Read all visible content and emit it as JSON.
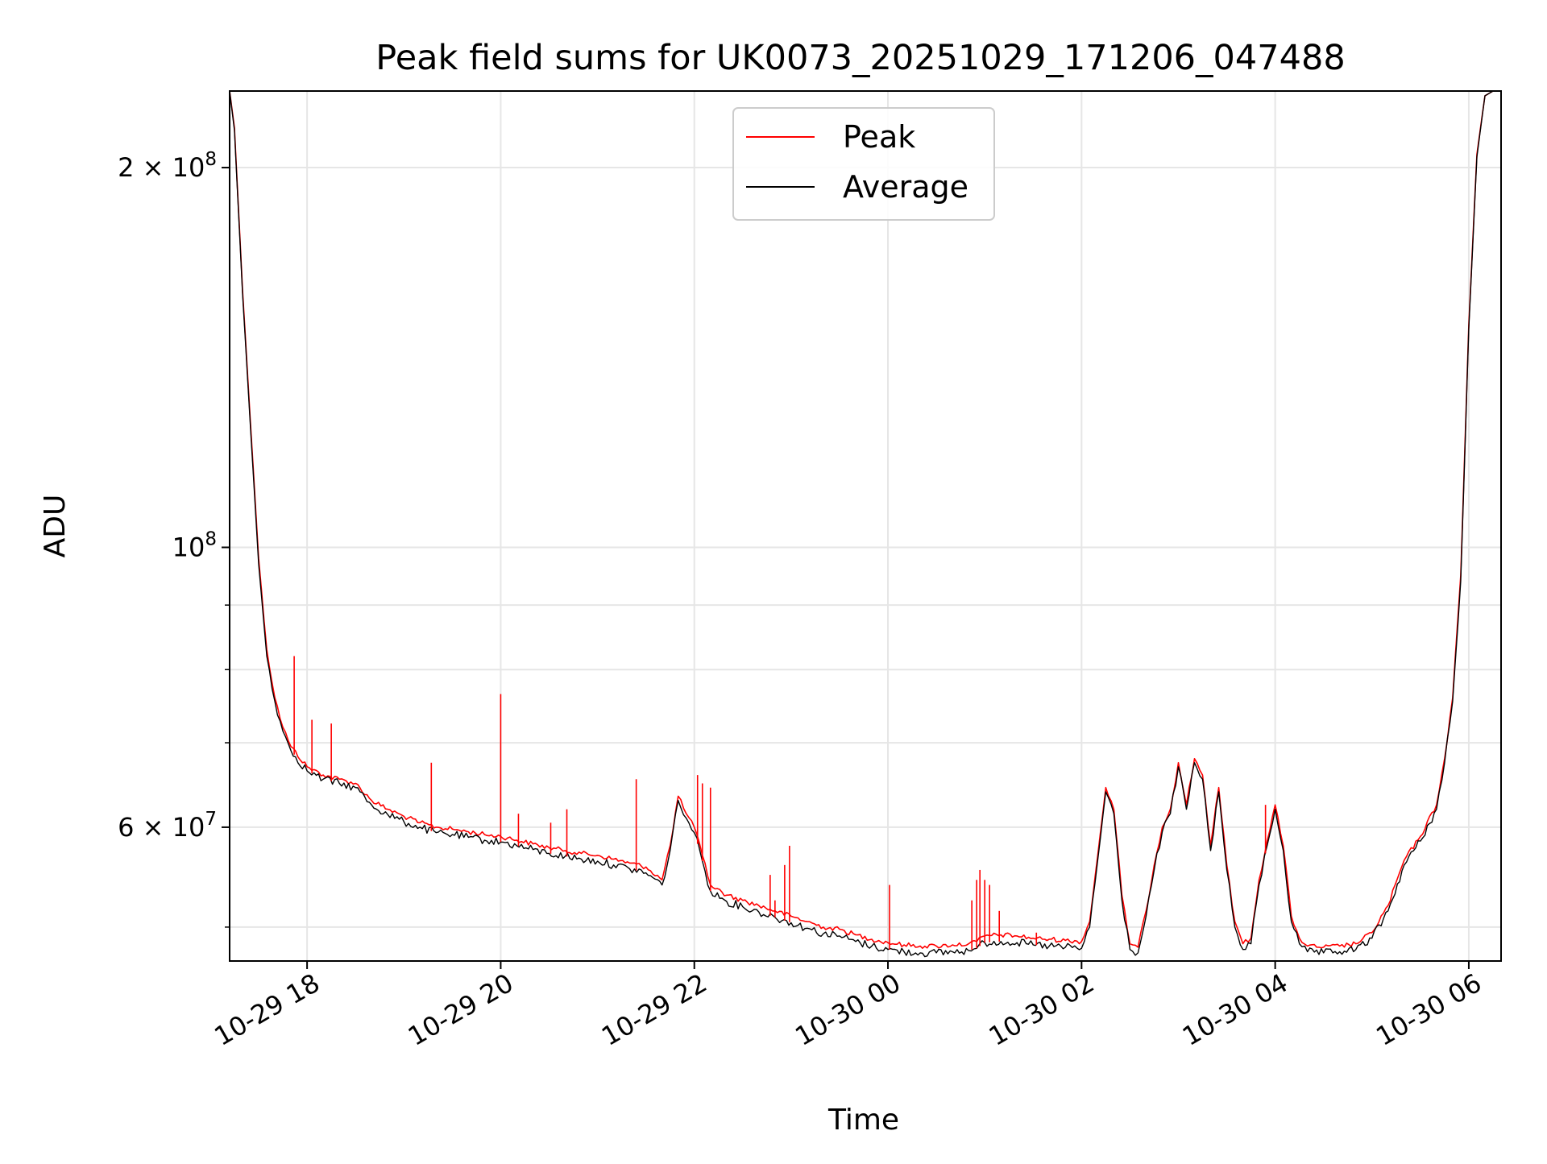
{
  "chart_data": {
    "type": "line",
    "title": "Peak field sums for UK0073_20251029_171206_047488",
    "xlabel": "Time",
    "ylabel": "ADU",
    "y_scale": "log",
    "ylim": [
      47000000,
      230000000
    ],
    "xlim": [
      "2025-10-29 17:12",
      "2025-10-30 06:20"
    ],
    "grid": true,
    "legend_position": "upper-center",
    "x_ticks": [
      {
        "value": "2025-10-29 18:00",
        "label": "10-29 18"
      },
      {
        "value": "2025-10-29 20:00",
        "label": "10-29 20"
      },
      {
        "value": "2025-10-29 22:00",
        "label": "10-29 22"
      },
      {
        "value": "2025-10-30 00:00",
        "label": "10-30 00"
      },
      {
        "value": "2025-10-30 02:00",
        "label": "10-30 02"
      },
      {
        "value": "2025-10-30 04:00",
        "label": "10-30 04"
      },
      {
        "value": "2025-10-30 06:00",
        "label": "10-30 06"
      }
    ],
    "y_ticks_major": [
      {
        "value": 200000000,
        "base": "2",
        "sep": " × ",
        "mant": "10",
        "exp": "8"
      },
      {
        "value": 100000000,
        "base": "",
        "sep": "",
        "mant": "10",
        "exp": "8"
      },
      {
        "value": 60000000,
        "base": "6",
        "sep": " × ",
        "mant": "10",
        "exp": "7"
      }
    ],
    "y_ticks_minor": [
      50000000,
      70000000,
      80000000,
      90000000
    ],
    "x": [
      "2025-10-29 17:12",
      "2025-10-29 17:15",
      "2025-10-29 17:20",
      "2025-10-29 17:25",
      "2025-10-29 17:30",
      "2025-10-29 17:35",
      "2025-10-29 17:40",
      "2025-10-29 17:45",
      "2025-10-29 17:50",
      "2025-10-29 18:00",
      "2025-10-29 18:10",
      "2025-10-29 18:20",
      "2025-10-29 18:30",
      "2025-10-29 18:40",
      "2025-10-29 18:50",
      "2025-10-29 19:00",
      "2025-10-29 19:10",
      "2025-10-29 19:20",
      "2025-10-29 19:30",
      "2025-10-29 19:40",
      "2025-10-29 19:50",
      "2025-10-29 20:00",
      "2025-10-29 20:10",
      "2025-10-29 20:20",
      "2025-10-29 20:30",
      "2025-10-29 20:40",
      "2025-10-29 20:50",
      "2025-10-29 21:00",
      "2025-10-29 21:10",
      "2025-10-29 21:20",
      "2025-10-29 21:30",
      "2025-10-29 21:40",
      "2025-10-29 21:45",
      "2025-10-29 21:50",
      "2025-10-29 21:55",
      "2025-10-29 22:00",
      "2025-10-29 22:05",
      "2025-10-29 22:10",
      "2025-10-29 22:20",
      "2025-10-29 22:30",
      "2025-10-29 22:40",
      "2025-10-29 22:50",
      "2025-10-29 23:00",
      "2025-10-29 23:10",
      "2025-10-29 23:20",
      "2025-10-29 23:30",
      "2025-10-29 23:40",
      "2025-10-29 23:50",
      "2025-10-30 00:00",
      "2025-10-30 00:10",
      "2025-10-30 00:20",
      "2025-10-30 00:30",
      "2025-10-30 00:40",
      "2025-10-30 00:50",
      "2025-10-30 00:55",
      "2025-10-30 01:00",
      "2025-10-30 01:10",
      "2025-10-30 01:20",
      "2025-10-30 01:30",
      "2025-10-30 01:40",
      "2025-10-30 01:50",
      "2025-10-30 02:00",
      "2025-10-30 02:05",
      "2025-10-30 02:10",
      "2025-10-30 02:15",
      "2025-10-30 02:20",
      "2025-10-30 02:25",
      "2025-10-30 02:30",
      "2025-10-30 02:35",
      "2025-10-30 02:40",
      "2025-10-30 02:45",
      "2025-10-30 02:50",
      "2025-10-30 02:55",
      "2025-10-30 03:00",
      "2025-10-30 03:05",
      "2025-10-30 03:10",
      "2025-10-30 03:15",
      "2025-10-30 03:20",
      "2025-10-30 03:25",
      "2025-10-30 03:30",
      "2025-10-30 03:35",
      "2025-10-30 03:40",
      "2025-10-30 03:45",
      "2025-10-30 03:50",
      "2025-10-30 03:55",
      "2025-10-30 04:00",
      "2025-10-30 04:05",
      "2025-10-30 04:10",
      "2025-10-30 04:15",
      "2025-10-30 04:20",
      "2025-10-30 04:30",
      "2025-10-30 04:40",
      "2025-10-30 04:50",
      "2025-10-30 05:00",
      "2025-10-30 05:10",
      "2025-10-30 05:20",
      "2025-10-30 05:30",
      "2025-10-30 05:40",
      "2025-10-30 05:45",
      "2025-10-30 05:50",
      "2025-10-30 05:55",
      "2025-10-30 06:00",
      "2025-10-30 06:05",
      "2025-10-30 06:10",
      "2025-10-30 06:15",
      "2025-10-30 06:20"
    ],
    "series": [
      {
        "name": "Peak",
        "color": "#ff0000",
        "values": [
          230000000,
          215000000,
          160000000,
          125000000,
          98000000,
          83000000,
          76000000,
          72000000,
          69500000,
          67000000,
          66000000,
          65500000,
          65000000,
          63000000,
          62000000,
          61200000,
          60500000,
          60000000,
          59800000,
          59500000,
          59200000,
          59000000,
          58600000,
          58200000,
          57800000,
          57500000,
          57200000,
          57000000,
          56600000,
          56200000,
          55800000,
          54500000,
          58000000,
          63500000,
          61500000,
          60000000,
          57000000,
          54000000,
          53000000,
          52500000,
          52000000,
          51500000,
          51000000,
          50500000,
          50000000,
          49800000,
          49300000,
          48900000,
          48600000,
          48400000,
          48300000,
          48300000,
          48400000,
          48500000,
          48700000,
          49200000,
          49300000,
          49200000,
          49000000,
          48900000,
          48800000,
          48700000,
          50500000,
          57000000,
          64500000,
          62000000,
          53000000,
          48500000,
          48200000,
          51500000,
          56000000,
          60000000,
          62000000,
          67500000,
          62500000,
          68000000,
          66000000,
          58000000,
          64500000,
          56000000,
          50500000,
          48500000,
          49000000,
          54500000,
          58500000,
          62500000,
          58000000,
          51000000,
          49000000,
          48300000,
          48200000,
          48300000,
          48500000,
          49500000,
          52000000,
          56500000,
          59000000,
          62500000,
          68000000,
          76000000,
          95000000,
          150000000,
          205000000,
          228000000,
          230000000,
          230000000
        ]
      },
      {
        "name": "Average",
        "color": "#000000",
        "values": [
          230000000,
          214000000,
          159000000,
          124000000,
          97000000,
          82000000,
          75500000,
          71500000,
          69000000,
          66500000,
          65500000,
          65000000,
          64500000,
          62500000,
          61400000,
          60600000,
          60000000,
          59400000,
          59200000,
          58900000,
          58600000,
          58400000,
          58000000,
          57600000,
          57200000,
          56900000,
          56600000,
          56400000,
          56000000,
          55600000,
          55200000,
          54000000,
          57500000,
          63000000,
          61000000,
          59400000,
          56400000,
          53400000,
          52400000,
          51900000,
          51400000,
          50900000,
          50400000,
          49900000,
          49400000,
          49200000,
          48700000,
          48300000,
          48000000,
          47800000,
          47700000,
          47700000,
          47800000,
          47900000,
          48100000,
          48600000,
          48700000,
          48600000,
          48400000,
          48300000,
          48200000,
          48100000,
          50000000,
          56500000,
          64000000,
          61500000,
          52500000,
          48000000,
          47700000,
          51000000,
          55500000,
          59500000,
          61500000,
          67000000,
          62000000,
          67500000,
          65500000,
          57500000,
          64000000,
          55500000,
          50000000,
          48000000,
          48500000,
          54000000,
          58000000,
          62000000,
          57500000,
          50500000,
          48500000,
          47800000,
          47700000,
          47800000,
          48000000,
          49000000,
          51500000,
          56000000,
          58500000,
          62000000,
          67500000,
          75500000,
          94000000,
          149000000,
          204000000,
          228000000,
          230000000,
          230000000
        ]
      }
    ],
    "peak_spikes": [
      {
        "x": "2025-10-29 17:52",
        "value": 82000000
      },
      {
        "x": "2025-10-29 18:03",
        "value": 73000000
      },
      {
        "x": "2025-10-29 18:15",
        "value": 72500000
      },
      {
        "x": "2025-10-29 19:17",
        "value": 67500000
      },
      {
        "x": "2025-10-29 20:00",
        "value": 76500000
      },
      {
        "x": "2025-10-29 20:11",
        "value": 61500000
      },
      {
        "x": "2025-10-29 20:31",
        "value": 60500000
      },
      {
        "x": "2025-10-29 20:41",
        "value": 62000000
      },
      {
        "x": "2025-10-29 21:24",
        "value": 65500000
      },
      {
        "x": "2025-10-29 22:02",
        "value": 66000000
      },
      {
        "x": "2025-10-29 22:05",
        "value": 65000000
      },
      {
        "x": "2025-10-29 22:10",
        "value": 64500000
      },
      {
        "x": "2025-10-29 22:47",
        "value": 55000000
      },
      {
        "x": "2025-10-29 22:50",
        "value": 52500000
      },
      {
        "x": "2025-10-29 22:56",
        "value": 56000000
      },
      {
        "x": "2025-10-29 22:59",
        "value": 58000000
      },
      {
        "x": "2025-10-30 00:01",
        "value": 54000000
      },
      {
        "x": "2025-10-30 00:52",
        "value": 52500000
      },
      {
        "x": "2025-10-30 00:55",
        "value": 54500000
      },
      {
        "x": "2025-10-30 00:57",
        "value": 55500000
      },
      {
        "x": "2025-10-30 01:00",
        "value": 54500000
      },
      {
        "x": "2025-10-30 01:03",
        "value": 54000000
      },
      {
        "x": "2025-10-30 01:09",
        "value": 51500000
      },
      {
        "x": "2025-10-30 01:32",
        "value": 49500000
      },
      {
        "x": "2025-10-30 03:54",
        "value": 62500000
      }
    ]
  }
}
